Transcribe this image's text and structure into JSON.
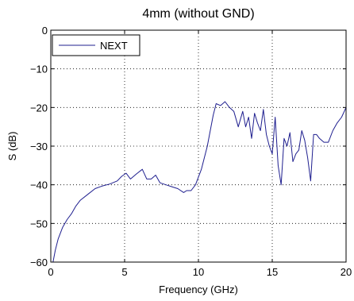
{
  "chart_data": {
    "type": "line",
    "title": "4mm (without GND)",
    "xlabel": "Frequency (GHz)",
    "ylabel": "S (dB)",
    "xlim": [
      0,
      20
    ],
    "ylim": [
      -60,
      0
    ],
    "xticks": [
      0,
      5,
      10,
      15,
      20
    ],
    "yticks": [
      0,
      -10,
      -20,
      -30,
      -40,
      -50,
      -60
    ],
    "xtick_labels": [
      "0",
      "5",
      "10",
      "15",
      "20"
    ],
    "ytick_labels": [
      "0",
      "−10",
      "−20",
      "−30",
      "−40",
      "−50",
      "−60"
    ],
    "grid": true,
    "legend_position": "top-left",
    "series": [
      {
        "name": "NEXT",
        "color": "#1f1f8f",
        "x": [
          0.15,
          0.3,
          0.5,
          0.8,
          1.1,
          1.4,
          1.7,
          2.0,
          2.5,
          3.0,
          3.5,
          4.0,
          4.5,
          4.8,
          5.1,
          5.4,
          5.8,
          6.2,
          6.5,
          6.8,
          7.1,
          7.4,
          7.8,
          8.2,
          8.6,
          9.0,
          9.2,
          9.5,
          9.8,
          10.2,
          10.6,
          11.0,
          11.2,
          11.5,
          11.8,
          12.1,
          12.4,
          12.7,
          13.0,
          13.2,
          13.4,
          13.6,
          13.8,
          14.0,
          14.2,
          14.4,
          14.6,
          14.8,
          15.0,
          15.2,
          15.4,
          15.6,
          15.8,
          16.0,
          16.2,
          16.4,
          16.6,
          16.8,
          17.0,
          17.2,
          17.4,
          17.6,
          17.8,
          18.0,
          18.2,
          18.5,
          18.8,
          19.1,
          19.4,
          19.7,
          20.0
        ],
        "y": [
          -60,
          -57,
          -54,
          -51,
          -49,
          -47.5,
          -45.5,
          -44,
          -42.5,
          -41,
          -40.3,
          -39.8,
          -39,
          -37.8,
          -37,
          -38.5,
          -37.2,
          -36,
          -38.5,
          -38.5,
          -37.5,
          -39.5,
          -40,
          -40.5,
          -41,
          -42,
          -41.5,
          -41.5,
          -40,
          -36,
          -30,
          -22,
          -19,
          -19.5,
          -18.5,
          -20,
          -21,
          -25,
          -21,
          -25,
          -22.5,
          -28,
          -21.5,
          -24,
          -26,
          -20.5,
          -27,
          -30,
          -32,
          -22.5,
          -35,
          -40,
          -28,
          -30,
          -26.5,
          -34,
          -32,
          -31,
          -26,
          -28.5,
          -33,
          -39,
          -27,
          -27,
          -28,
          -29,
          -29,
          -26,
          -24,
          -22.5,
          -20
        ]
      }
    ]
  }
}
